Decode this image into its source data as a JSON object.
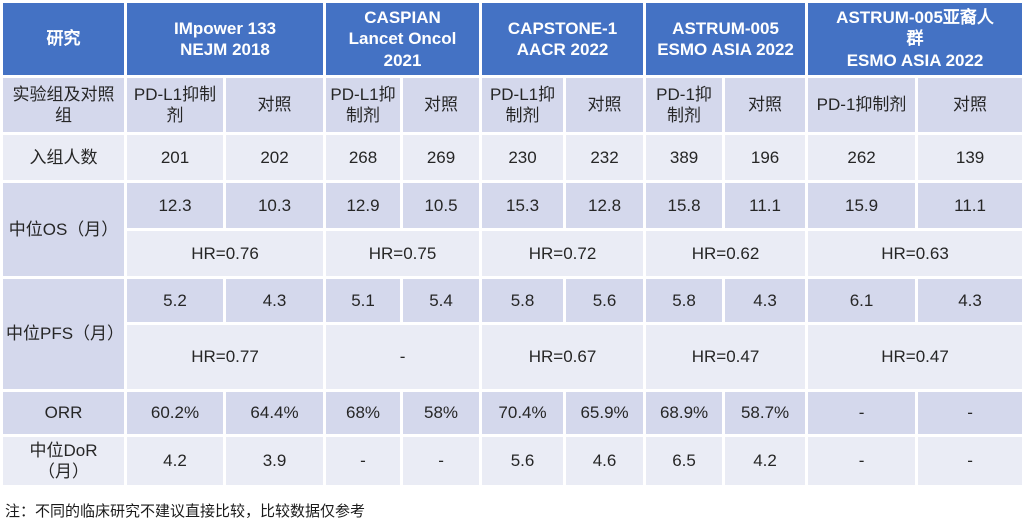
{
  "table": {
    "corner_label": "研究",
    "studies": [
      {
        "name": "IMpower 133",
        "journal": "NEJM 2018",
        "arm": "PD-L1抑制剂",
        "control": "对照"
      },
      {
        "name": "CASPIAN",
        "journal": "Lancet Oncol 2021",
        "arm": "PD-L1抑制剂",
        "control": "对照"
      },
      {
        "name": "CAPSTONE-1",
        "journal": "AACR 2022",
        "arm": "PD-L1抑制剂",
        "control": "对照"
      },
      {
        "name": "ASTRUM-005",
        "journal": "ESMO ASIA 2022",
        "arm": "PD-1抑制剂",
        "control": "对照"
      },
      {
        "name": "ASTRUM-005亚裔人\n群",
        "journal": "ESMO ASIA 2022",
        "arm": "PD-1抑制剂",
        "control": "对照"
      }
    ],
    "rows": {
      "arm_label": "实验组及对照\n组",
      "enrollment": {
        "label": "入组人数",
        "values": [
          "201",
          "202",
          "268",
          "269",
          "230",
          "232",
          "389",
          "196",
          "262",
          "139"
        ]
      },
      "os": {
        "label": "中位OS（月）",
        "values": [
          "12.3",
          "10.3",
          "12.9",
          "10.5",
          "15.3",
          "12.8",
          "15.8",
          "11.1",
          "15.9",
          "11.1"
        ],
        "hr": [
          "HR=0.76",
          "HR=0.75",
          "HR=0.72",
          "HR=0.62",
          "HR=0.63"
        ]
      },
      "pfs": {
        "label": "中位PFS（月）",
        "values": [
          "5.2",
          "4.3",
          "5.1",
          "5.4",
          "5.8",
          "5.6",
          "5.8",
          "4.3",
          "6.1",
          "4.3"
        ],
        "hr": [
          "HR=0.77",
          "-",
          "HR=0.67",
          "HR=0.47",
          "HR=0.47"
        ]
      },
      "orr": {
        "label": "ORR",
        "values": [
          "60.2%",
          "64.4%",
          "68%",
          "58%",
          "70.4%",
          "65.9%",
          "68.9%",
          "58.7%",
          "-",
          "-"
        ]
      },
      "dor": {
        "label": "中位DoR\n（月）",
        "values": [
          "4.2",
          "3.9",
          "-",
          "-",
          "5.6",
          "4.6",
          "6.5",
          "4.2",
          "-",
          "-"
        ]
      }
    }
  },
  "note": "注：不同的临床研究不建议直接比较，比较数据仅参考",
  "colors": {
    "header_bg": "#4472C4",
    "band_medium": "#D4D8EC",
    "band_light": "#EAECF5",
    "text_dark": "#262626",
    "header_text": "#FFFFFF"
  }
}
